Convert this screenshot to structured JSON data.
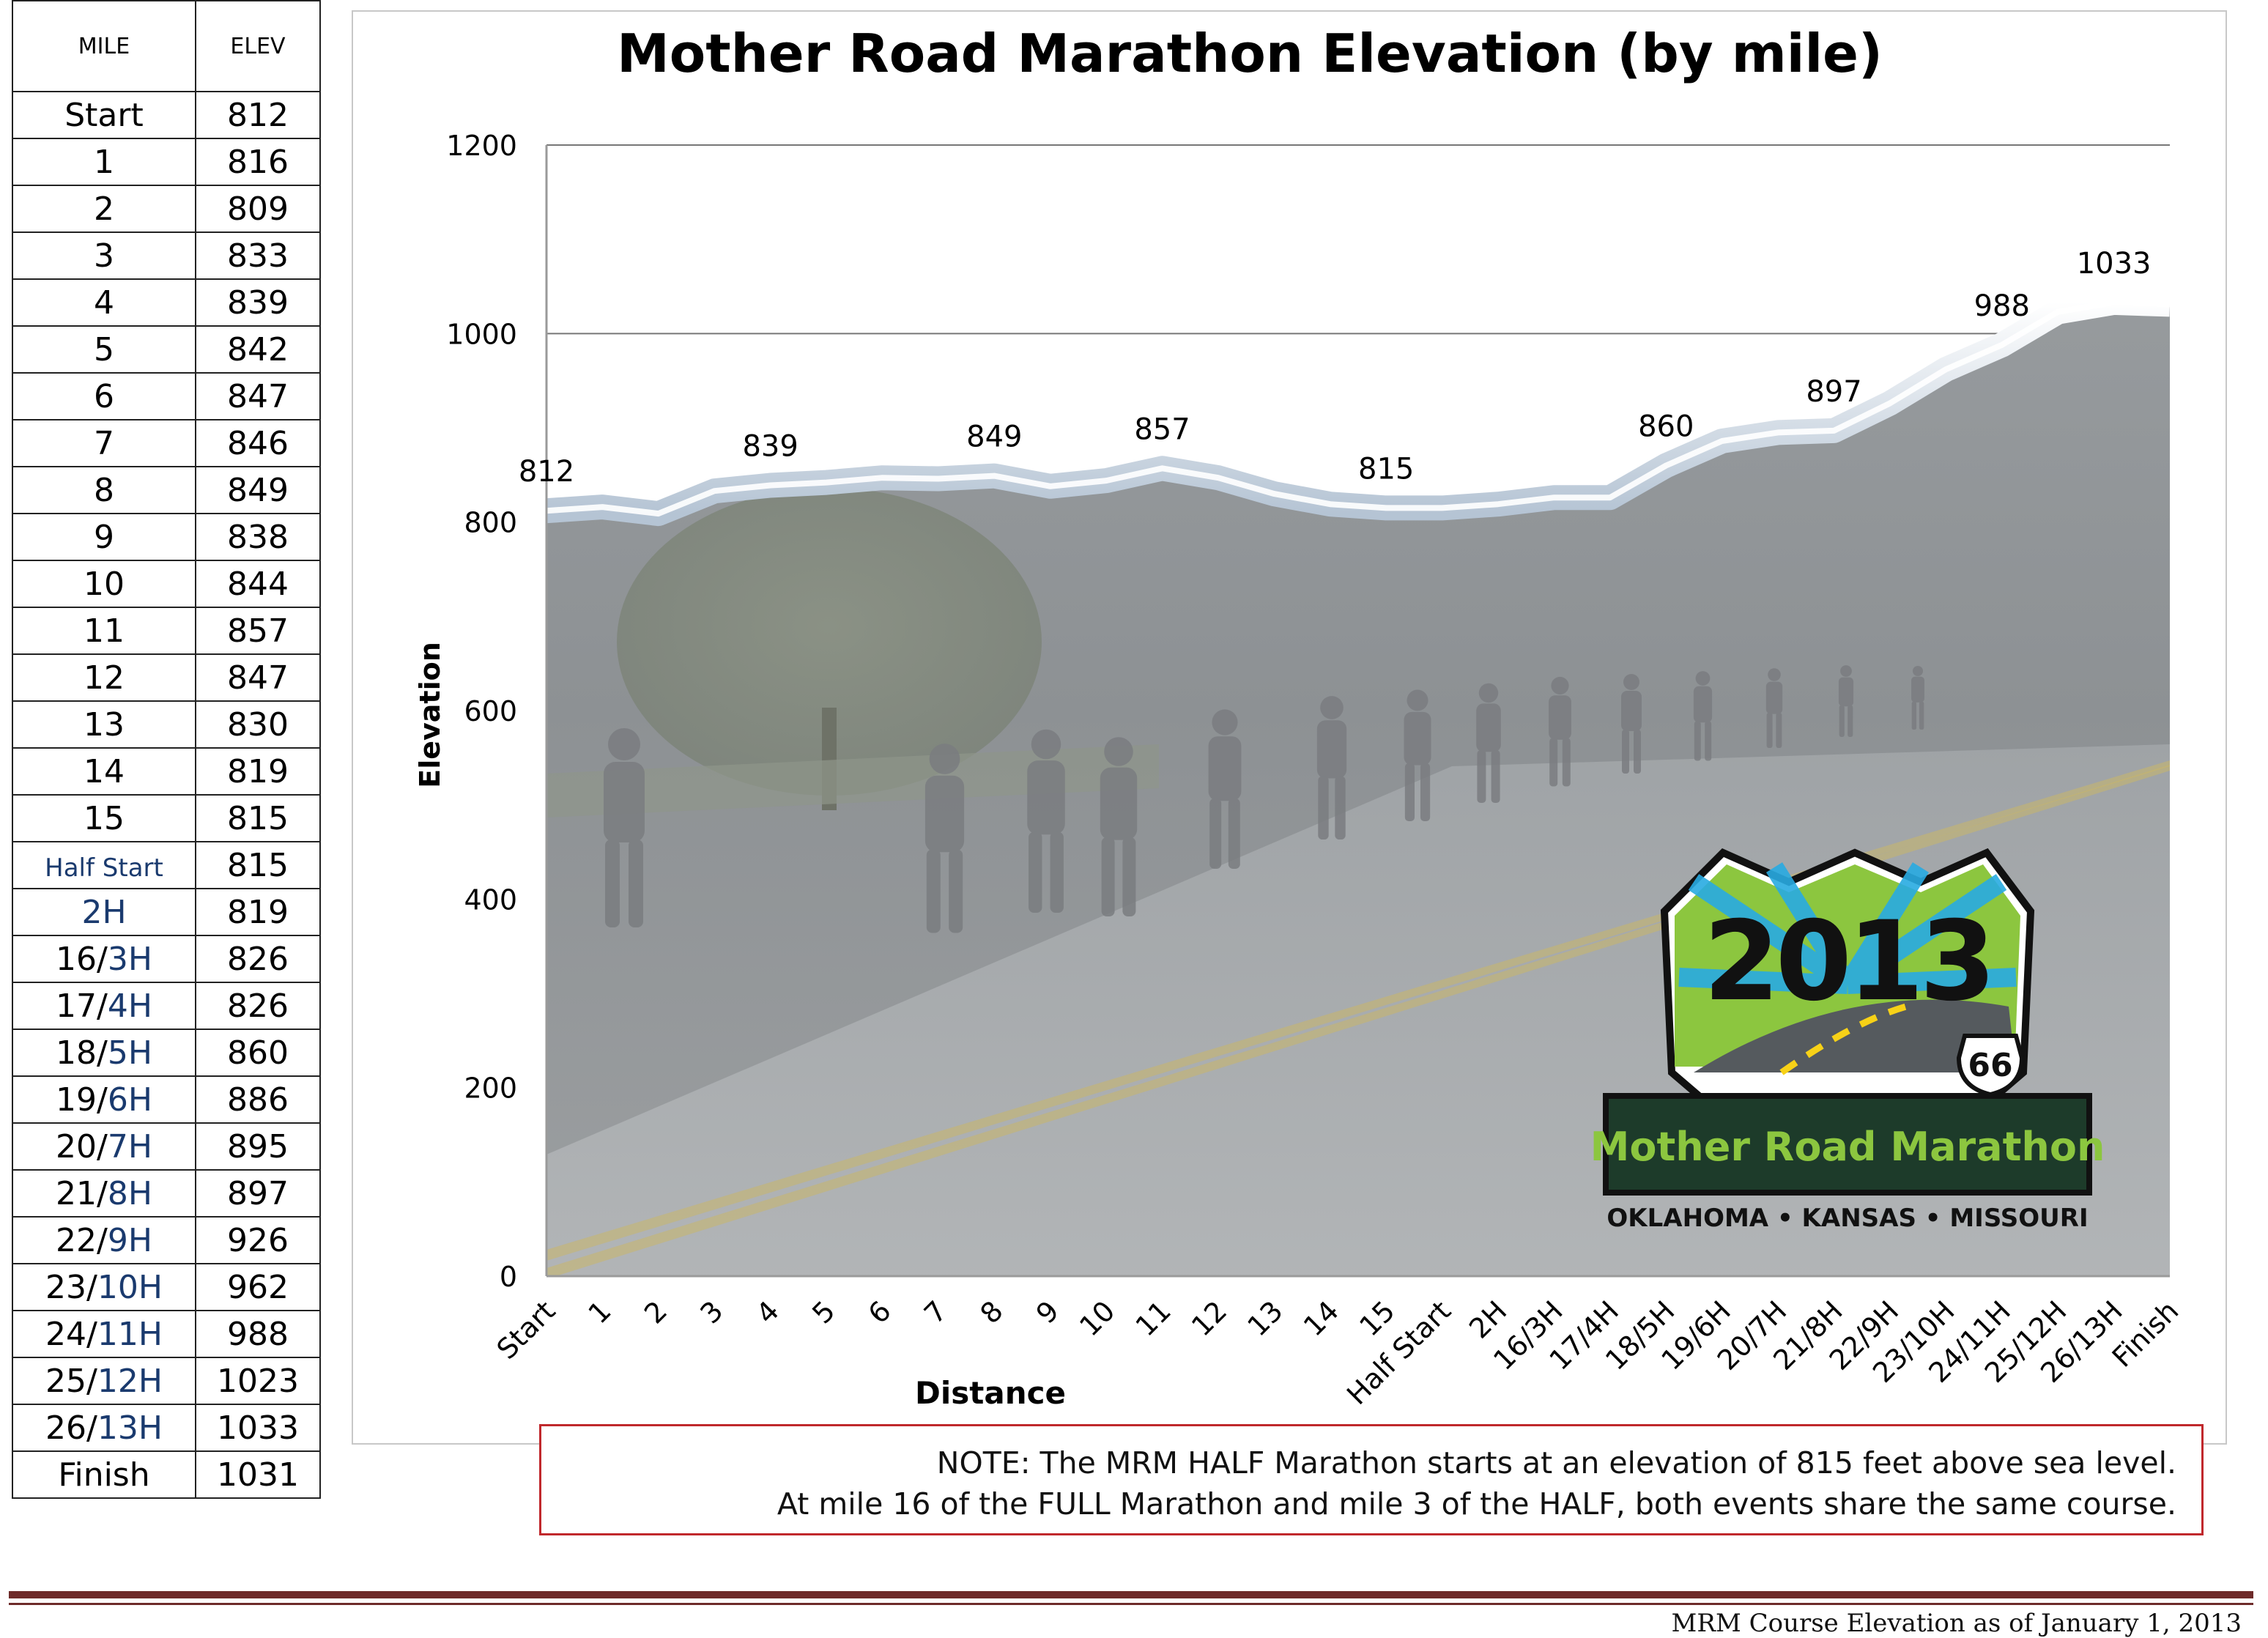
{
  "table": {
    "header_mile": "MILE",
    "header_elev": "ELEV",
    "rows": [
      {
        "full": "Start",
        "half": "",
        "elev": "812"
      },
      {
        "full": "1",
        "half": "",
        "elev": "816"
      },
      {
        "full": "2",
        "half": "",
        "elev": "809"
      },
      {
        "full": "3",
        "half": "",
        "elev": "833"
      },
      {
        "full": "4",
        "half": "",
        "elev": "839"
      },
      {
        "full": "5",
        "half": "",
        "elev": "842"
      },
      {
        "full": "6",
        "half": "",
        "elev": "847"
      },
      {
        "full": "7",
        "half": "",
        "elev": "846"
      },
      {
        "full": "8",
        "half": "",
        "elev": "849"
      },
      {
        "full": "9",
        "half": "",
        "elev": "838"
      },
      {
        "full": "10",
        "half": "",
        "elev": "844"
      },
      {
        "full": "11",
        "half": "",
        "elev": "857"
      },
      {
        "full": "12",
        "half": "",
        "elev": "847"
      },
      {
        "full": "13",
        "half": "",
        "elev": "830"
      },
      {
        "full": "14",
        "half": "",
        "elev": "819"
      },
      {
        "full": "15",
        "half": "",
        "elev": "815"
      },
      {
        "full": "",
        "half": "Half Start",
        "elev": "815",
        "small": true
      },
      {
        "full": "",
        "half": "2H",
        "elev": "819"
      },
      {
        "full": "16/",
        "half": "3H",
        "elev": "826"
      },
      {
        "full": "17/",
        "half": "4H",
        "elev": "826"
      },
      {
        "full": "18/",
        "half": "5H",
        "elev": "860"
      },
      {
        "full": "19/",
        "half": "6H",
        "elev": "886"
      },
      {
        "full": "20/",
        "half": "7H",
        "elev": "895"
      },
      {
        "full": "21/",
        "half": "8H",
        "elev": "897"
      },
      {
        "full": "22/",
        "half": "9H",
        "elev": "926"
      },
      {
        "full": "23/",
        "half": "10H",
        "elev": "962"
      },
      {
        "full": "24/",
        "half": "11H",
        "elev": "988"
      },
      {
        "full": "25/",
        "half": "12H",
        "elev": "1023"
      },
      {
        "full": "26/",
        "half": "13H",
        "elev": "1033"
      },
      {
        "full": "Finish",
        "half": "",
        "elev": "1031"
      }
    ]
  },
  "chart_data": {
    "type": "area",
    "title": "Mother Road Marathon Elevation (by mile)",
    "xlabel": "Distance",
    "ylabel": "Elevation",
    "ylim": [
      0,
      1200
    ],
    "yticks": [
      "0",
      "200",
      "400",
      "600",
      "800",
      "1000",
      "1200"
    ],
    "grid": true,
    "categories": [
      "Start",
      "1",
      "2",
      "3",
      "4",
      "5",
      "6",
      "7",
      "8",
      "9",
      "10",
      "11",
      "12",
      "13",
      "14",
      "15",
      "Half Start",
      "2H",
      "16/3H",
      "17/4H",
      "18/5H",
      "19/6H",
      "20/7H",
      "21/8H",
      "22/9H",
      "23/10H",
      "24/11H",
      "25/12H",
      "26/13H",
      "Finish"
    ],
    "series": [
      {
        "values": [
          812,
          816,
          809,
          833,
          839,
          842,
          847,
          846,
          849,
          838,
          844,
          857,
          847,
          830,
          819,
          815,
          815,
          819,
          826,
          826,
          860,
          886,
          895,
          897,
          926,
          962,
          988,
          1023,
          1033,
          1031
        ]
      }
    ],
    "data_labels": [
      {
        "index": 0,
        "text": "812"
      },
      {
        "index": 4,
        "text": "839"
      },
      {
        "index": 8,
        "text": "849"
      },
      {
        "index": 11,
        "text": "857"
      },
      {
        "index": 15,
        "text": "815"
      },
      {
        "index": 20,
        "text": "860"
      },
      {
        "index": 23,
        "text": "897"
      },
      {
        "index": 26,
        "text": "988"
      },
      {
        "index": 28,
        "text": "1033"
      }
    ]
  },
  "logo": {
    "year": "2013",
    "route": "66",
    "name": "Mother Road Marathon",
    "states": "OKLAHOMA • KANSAS • MISSOURI"
  },
  "note": {
    "line1": "NOTE: The MRM HALF Marathon starts at an elevation of 815 feet above sea level.",
    "line2": "At mile 16 of the FULL Marathon and mile 3 of the HALF, both events share the same course."
  },
  "footer": {
    "caption": "MRM Course Elevation as of January 1, 2013"
  },
  "colors": {
    "area_fill": "#8a8e92",
    "road": "#a7aaac",
    "sky": "#8f9395",
    "note_border": "#c0282c",
    "footer_rule": "#6e2b2a",
    "logo_green": "#8cc63f",
    "logo_blue": "#29abe2",
    "half_mile_text": "#1a3a6e"
  }
}
